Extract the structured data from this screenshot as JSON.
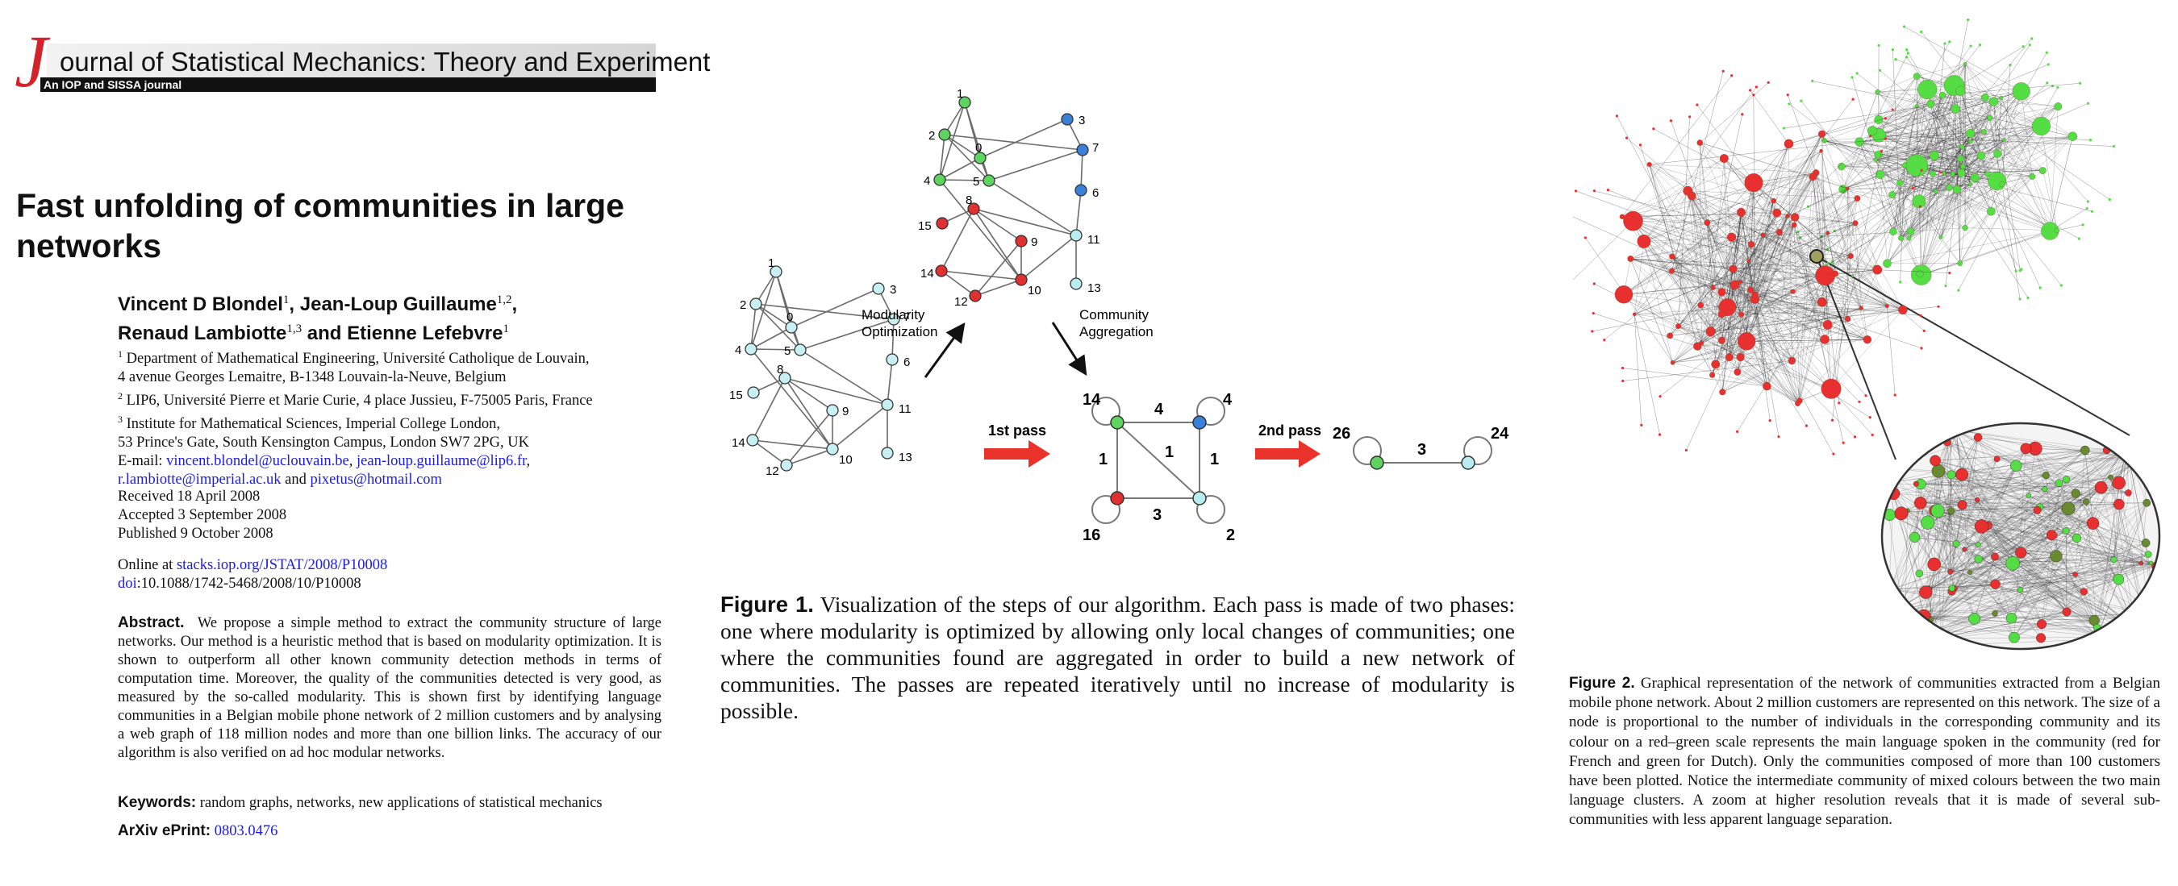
{
  "journal": {
    "initial": "J",
    "title_rest": "ournal of Statistical Mechanics: Theory and Experiment",
    "subtitle": "An IOP and SISSA journal"
  },
  "paper": {
    "title": "Fast unfolding of communities in large networks",
    "authors_line1": {
      "a1": "Vincent D Blondel",
      "a1_sup": "1",
      "a2": ", Jean-Loup Guillaume",
      "a2_sup": "1,2",
      "a2_end": ","
    },
    "authors_line2": {
      "a3": "Renaud Lambiotte",
      "a3_sup": "1,3",
      "a4": " and Etienne Lefebvre",
      "a4_sup": "1"
    },
    "affiliations": [
      {
        "sup": "1",
        "text": " Department of Mathematical Engineering, Université Catholique de Louvain,"
      },
      {
        "sup": "",
        "text": "4 avenue Georges Lemaitre, B-1348 Louvain-la-Neuve, Belgium"
      },
      {
        "sup": "2",
        "text": " LIP6, Université Pierre et Marie Curie, 4 place Jussieu, F-75005 Paris, France"
      },
      {
        "sup": "3",
        "text": " Institute for Mathematical Sciences, Imperial College London,"
      },
      {
        "sup": "",
        "text": "53 Prince's Gate, South Kensington Campus, London SW7 2PG, UK"
      }
    ],
    "email_label": "E-mail: ",
    "emails": {
      "e1": "vincent.blondel@uclouvain.be",
      "sep1": ", ",
      "e2": "jean-loup.guillaume@lip6.fr",
      "sep2": ",",
      "e3": "r.lambiotte@imperial.ac.uk",
      "and": " and ",
      "e4": "pixetus@hotmail.com"
    },
    "dates": [
      "Received 18 April 2008",
      "Accepted 3 September 2008",
      "Published 9 October 2008"
    ],
    "online_label": "Online at ",
    "online_url": "stacks.iop.org/JSTAT/2008/P10008",
    "doi_label": "doi",
    "doi_value": ":10.1088/1742-5468/2008/10/P10008",
    "abstract_label": "Abstract.",
    "abstract_text": "We propose a simple method to extract the community structure of large networks. Our method is a heuristic method that is based on modularity optimization. It is shown to outperform all other known community detection methods in terms of computation time. Moreover, the quality of the communities detected is very good, as measured by the so-called modularity. This is shown first by identifying language communities in a Belgian mobile phone network of 2 million customers and by analysing a web graph of 118 million nodes and more than one billion links. The accuracy of our algorithm is also verified on ad hoc modular networks.",
    "keywords_label": "Keywords:",
    "keywords_text": " random graphs, networks, new applications of statistical mechanics",
    "arxiv_label": "ArXiv ePrint:",
    "arxiv_value": " 0803.0476"
  },
  "figure1": {
    "label_modularity": [
      "Modularity",
      "Optimization"
    ],
    "label_aggregation": [
      "Community",
      "Aggregation"
    ],
    "pass1": "1st pass",
    "pass2": "2nd pass",
    "node_labels": [
      "0",
      "1",
      "2",
      "3",
      "4",
      "5",
      "6",
      "7",
      "8",
      "9",
      "10",
      "11",
      "12",
      "13",
      "14",
      "15"
    ],
    "agg1_self": [
      "14",
      "4",
      "16",
      "2"
    ],
    "agg1_edges": [
      "4",
      "1",
      "1",
      "1",
      "3"
    ],
    "agg2_self": [
      "26",
      "24"
    ],
    "agg2_edge": "3",
    "colors": {
      "green": "#5fd35f",
      "blue": "#3a7fd9",
      "red": "#e03030",
      "cyan": "#b8ecf0",
      "arrow": "#e8322a"
    },
    "caption_label": "Figure 1.",
    "caption_text": " Visualization of the steps of our algorithm. Each pass is made of two phases: one where modularity is optimized by allowing only local changes of communities; one where the communities found are aggregated in order to build a new network of communities. The passes are repeated iteratively until no increase of modularity is possible."
  },
  "figure2": {
    "colors": {
      "red": "#e83030",
      "green": "#55dd44",
      "edge": "#222222"
    },
    "caption_label": "Figure 2.",
    "caption_text": " Graphical representation of the network of communities extracted from a Belgian mobile phone network. About 2 million customers are represented on this network. The size of a node is proportional to the number of individuals in the corresponding community and its colour on a red–green scale represents the main language spoken in the community (red for French and green for Dutch). Only the communities composed of more than 100 customers have been plotted. Notice the intermediate community of mixed colours between the two main language clusters. A zoom at higher resolution reveals that it is made of several sub-communities with less apparent language separation."
  }
}
